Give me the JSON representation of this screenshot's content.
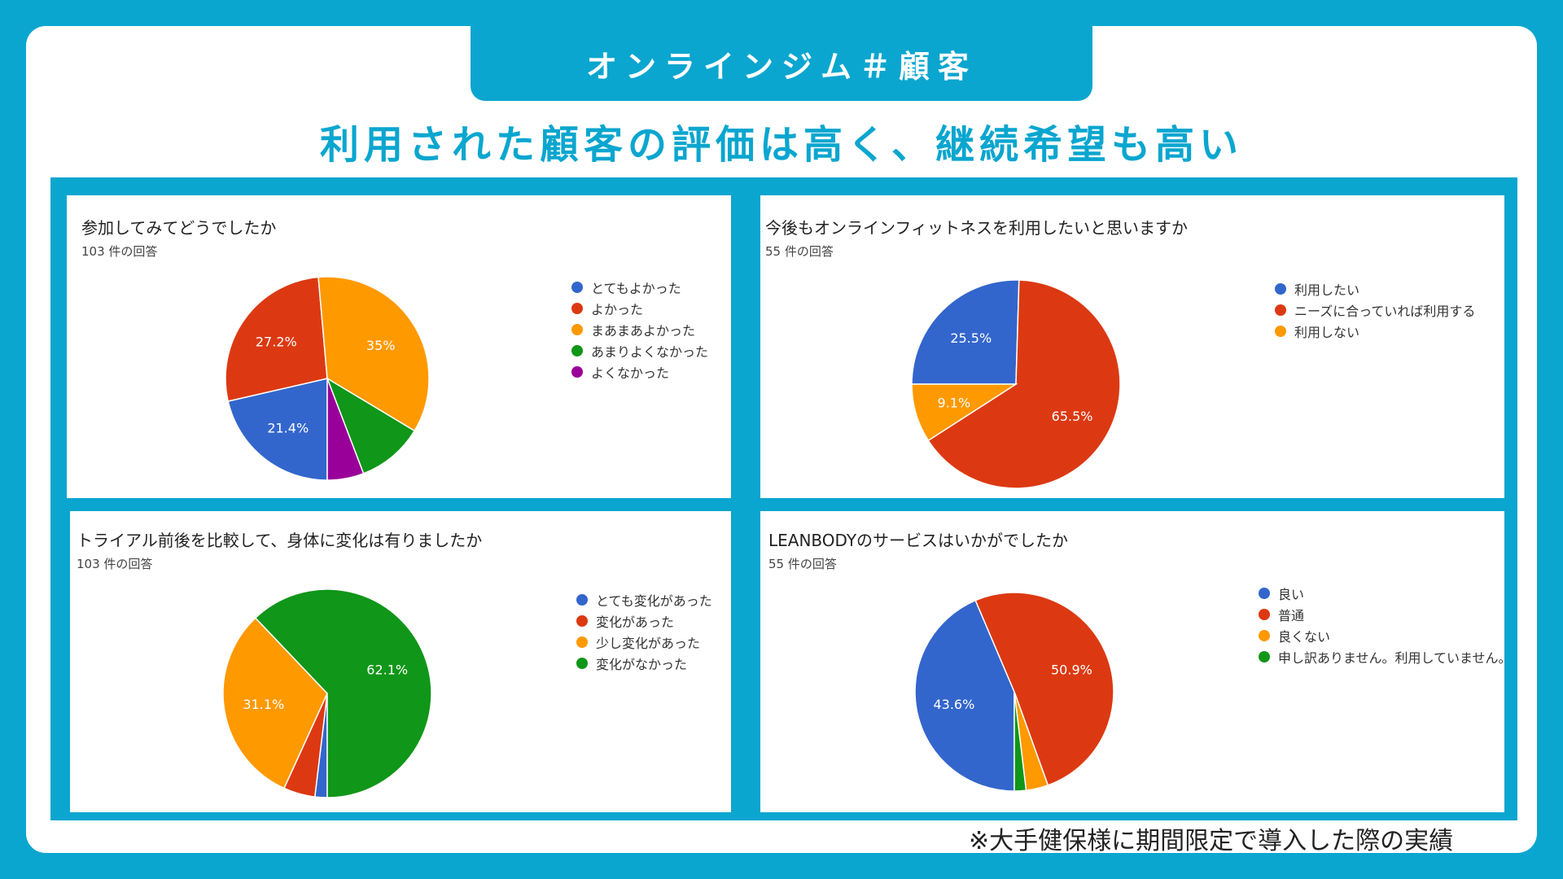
{
  "slide": {
    "tab_title": "オンラインジム＃顧客",
    "headline": "利用された顧客の評価は高く、継続希望も高い",
    "footnote": "※大手健保様に期間限定で導入した際の実績"
  },
  "colors": {
    "background": "#0aa6cf",
    "blue": "#3366cc",
    "red": "#dc3912",
    "orange": "#ff9900",
    "green": "#109618",
    "purple": "#990099"
  },
  "chart_data": [
    {
      "type": "pie",
      "title": "参加してみてどうでしたか",
      "subtitle": "103 件の回答",
      "categories": [
        "とてもよかった",
        "よかった",
        "まあまあよかった",
        "あまりよくなかった",
        "よくなかった"
      ],
      "values": [
        21.4,
        27.2,
        35,
        10.6,
        5.8
      ],
      "labels": [
        "21.4%",
        "27.2%",
        "35%",
        "",
        ""
      ],
      "colors": [
        "#3366cc",
        "#dc3912",
        "#ff9900",
        "#109618",
        "#990099"
      ],
      "legend_position": "right"
    },
    {
      "type": "pie",
      "title": "今後もオンラインフィットネスを利用したいと思いますか",
      "subtitle": "55 件の回答",
      "categories": [
        "利用したい",
        "ニーズに合っていれば利用する",
        "利用しない"
      ],
      "values": [
        25.5,
        65.5,
        9.1
      ],
      "labels": [
        "25.5%",
        "65.5%",
        "9.1%"
      ],
      "colors": [
        "#3366cc",
        "#dc3912",
        "#ff9900"
      ],
      "legend_position": "right"
    },
    {
      "type": "pie",
      "title": "トライアル前後を比較して、身体に変化は有りましたか",
      "subtitle": "103 件の回答",
      "categories": [
        "とても変化があった",
        "変化があった",
        "少し変化があった",
        "変化がなかった"
      ],
      "values": [
        1.9,
        4.9,
        31.1,
        62.1
      ],
      "labels": [
        "",
        "",
        "31.1%",
        "62.1%"
      ],
      "colors": [
        "#3366cc",
        "#dc3912",
        "#ff9900",
        "#109618"
      ],
      "legend_position": "right"
    },
    {
      "type": "pie",
      "title": "LEANBODYのサービスはいかがでしたか",
      "subtitle": "55 件の回答",
      "categories": [
        "良い",
        "普通",
        "良くない",
        "申し訳ありません。利用していません。"
      ],
      "values": [
        43.6,
        50.9,
        3.6,
        1.9
      ],
      "labels": [
        "43.6%",
        "50.9%",
        "",
        ""
      ],
      "colors": [
        "#3366cc",
        "#dc3912",
        "#ff9900",
        "#109618"
      ],
      "legend_position": "right"
    }
  ]
}
